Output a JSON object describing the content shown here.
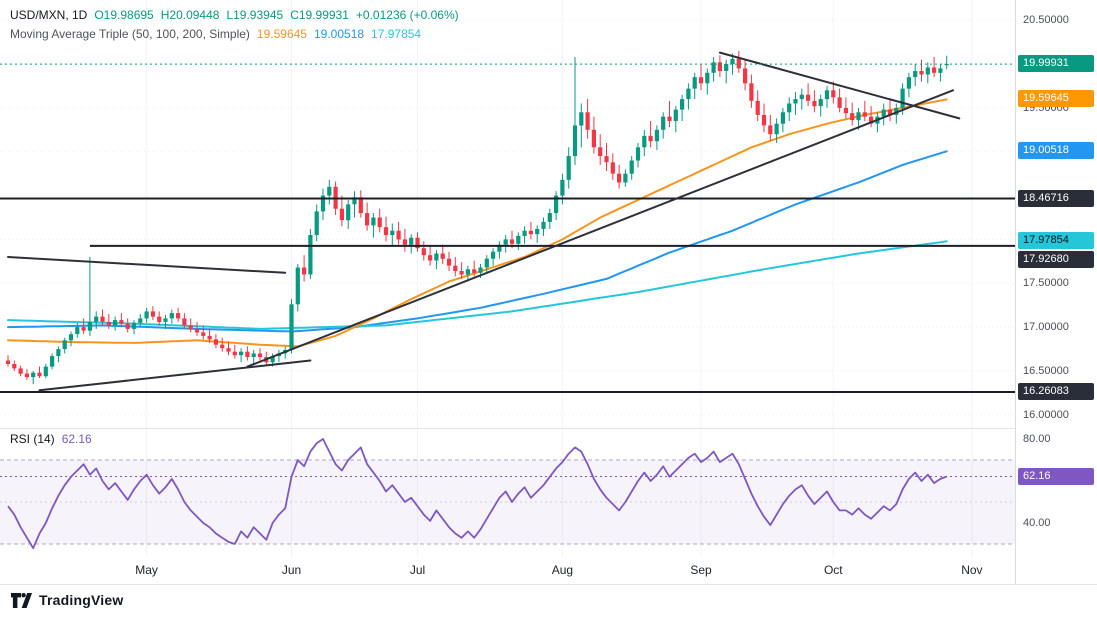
{
  "header": {
    "symbol_interval": "USD/MXN, 1D",
    "open": "O19.98695",
    "high": "H20.09448",
    "low": "L19.93945",
    "close": "C19.99931",
    "change": "+0.01236 (+0.06%)"
  },
  "ma_legend": {
    "title": "Moving Average Triple (50, 100, 200, Simple)",
    "ma50_value": "19.59645",
    "ma100_value": "19.00518",
    "ma200_value": "17.97854"
  },
  "rsi_legend": {
    "title": "RSI (14)",
    "value": "62.16"
  },
  "price_axis": {
    "plain": [
      {
        "text": "20.50000",
        "price": 20.5
      },
      {
        "text": "19.50000",
        "price": 19.5
      },
      {
        "text": "17.50000",
        "price": 17.5
      },
      {
        "text": "17.00000",
        "price": 17.0
      },
      {
        "text": "16.50000",
        "price": 16.5
      },
      {
        "text": "16.00000",
        "price": 16.0
      }
    ],
    "badges": [
      {
        "text": "19.99931",
        "price": 19.99931,
        "bg": "#089981",
        "fg": "#ffffff"
      },
      {
        "text": "19.59645",
        "price": 19.59645,
        "bg": "#ff9800",
        "fg": "#ffffff"
      },
      {
        "text": "19.00518",
        "price": 19.00518,
        "bg": "#2196f3",
        "fg": "#ffffff"
      },
      {
        "text": "18.46716",
        "price": 18.46716,
        "bg": "#2a2e39",
        "fg": "#ffffff"
      },
      {
        "text": "17.97854",
        "price": 17.97854,
        "bg": "#26c6da",
        "fg": "#10131a"
      },
      {
        "text": "17.92680",
        "price": 17.9268,
        "bg": "#2a2e39",
        "fg": "#ffffff"
      },
      {
        "text": "16.26083",
        "price": 16.26083,
        "bg": "#2a2e39",
        "fg": "#ffffff"
      }
    ]
  },
  "rsi_axis": {
    "plain": [
      {
        "text": "80.00",
        "value": 80
      },
      {
        "text": "40.00",
        "value": 40
      }
    ],
    "badge": {
      "text": "62.16",
      "value": 62.16,
      "bg": "#7e57c2",
      "fg": "#ffffff"
    }
  },
  "time_axis": {
    "months": [
      {
        "label": "May",
        "i": 22
      },
      {
        "label": "Jun",
        "i": 45
      },
      {
        "label": "Jul",
        "i": 65
      },
      {
        "label": "Aug",
        "i": 88
      },
      {
        "label": "Sep",
        "i": 110
      },
      {
        "label": "Oct",
        "i": 131
      },
      {
        "label": "Nov",
        "i": 153
      }
    ]
  },
  "footer": {
    "brand": "TradingView"
  },
  "chart_data": {
    "type": "candlestick",
    "title": "USD/MXN, 1D",
    "ylim": [
      15.85,
      20.73
    ],
    "colors": {
      "up": "#089981",
      "down": "#f23645",
      "ma50": "#f7941e",
      "ma100": "#2196f3",
      "ma200": "#26c6da",
      "rsi": "#7e57c2",
      "drawing": "#2e3039",
      "hline": "#1c1f2a"
    },
    "last_price": 19.99931,
    "candles": [
      [
        16.62,
        16.68,
        16.55,
        16.58
      ],
      [
        16.58,
        16.62,
        16.5,
        16.53
      ],
      [
        16.53,
        16.56,
        16.44,
        16.47
      ],
      [
        16.47,
        16.52,
        16.4,
        16.43
      ],
      [
        16.43,
        16.5,
        16.35,
        16.48
      ],
      [
        16.48,
        16.55,
        16.42,
        16.44
      ],
      [
        16.44,
        16.58,
        16.42,
        16.55
      ],
      [
        16.55,
        16.7,
        16.52,
        16.67
      ],
      [
        16.67,
        16.78,
        16.6,
        16.75
      ],
      [
        16.75,
        16.88,
        16.7,
        16.85
      ],
      [
        16.85,
        16.95,
        16.78,
        16.92
      ],
      [
        16.92,
        17.05,
        16.88,
        17.0
      ],
      [
        17.0,
        17.1,
        16.92,
        16.96
      ],
      [
        16.96,
        17.8,
        16.9,
        17.06
      ],
      [
        17.06,
        17.18,
        16.98,
        17.12
      ],
      [
        17.12,
        17.2,
        17.02,
        17.06
      ],
      [
        17.06,
        17.15,
        16.98,
        17.02
      ],
      [
        17.02,
        17.12,
        16.96,
        17.08
      ],
      [
        17.08,
        17.16,
        17.0,
        17.04
      ],
      [
        17.04,
        17.1,
        16.94,
        16.98
      ],
      [
        16.98,
        17.08,
        16.92,
        17.05
      ],
      [
        17.05,
        17.15,
        17.0,
        17.1
      ],
      [
        17.1,
        17.22,
        17.05,
        17.18
      ],
      [
        17.18,
        17.24,
        17.08,
        17.12
      ],
      [
        17.12,
        17.18,
        17.02,
        17.06
      ],
      [
        17.06,
        17.14,
        16.98,
        17.1
      ],
      [
        17.1,
        17.2,
        17.04,
        17.16
      ],
      [
        17.16,
        17.22,
        17.06,
        17.1
      ],
      [
        17.1,
        17.16,
        16.98,
        17.02
      ],
      [
        17.02,
        17.1,
        16.94,
        16.98
      ],
      [
        16.98,
        17.06,
        16.9,
        16.94
      ],
      [
        16.94,
        17.02,
        16.86,
        16.9
      ],
      [
        16.9,
        16.98,
        16.82,
        16.86
      ],
      [
        16.86,
        16.92,
        16.76,
        16.8
      ],
      [
        16.8,
        16.88,
        16.72,
        16.76
      ],
      [
        16.76,
        16.84,
        16.68,
        16.72
      ],
      [
        16.72,
        16.8,
        16.64,
        16.68
      ],
      [
        16.68,
        16.76,
        16.6,
        16.72
      ],
      [
        16.72,
        16.78,
        16.62,
        16.66
      ],
      [
        16.66,
        16.74,
        16.58,
        16.7
      ],
      [
        16.7,
        16.76,
        16.62,
        16.66
      ],
      [
        16.66,
        16.72,
        16.56,
        16.6
      ],
      [
        16.6,
        16.7,
        16.55,
        16.67
      ],
      [
        16.67,
        16.74,
        16.6,
        16.7
      ],
      [
        16.7,
        16.78,
        16.64,
        16.74
      ],
      [
        16.74,
        17.32,
        16.7,
        17.26
      ],
      [
        17.26,
        17.72,
        17.18,
        17.68
      ],
      [
        17.68,
        17.82,
        17.52,
        17.6
      ],
      [
        17.6,
        18.12,
        17.55,
        18.05
      ],
      [
        18.05,
        18.4,
        17.98,
        18.32
      ],
      [
        18.32,
        18.58,
        18.22,
        18.5
      ],
      [
        18.5,
        18.68,
        18.4,
        18.6
      ],
      [
        18.6,
        18.66,
        18.28,
        18.35
      ],
      [
        18.35,
        18.5,
        18.15,
        18.22
      ],
      [
        18.22,
        18.45,
        18.12,
        18.4
      ],
      [
        18.4,
        18.55,
        18.25,
        18.48
      ],
      [
        18.48,
        18.56,
        18.25,
        18.3
      ],
      [
        18.3,
        18.42,
        18.1,
        18.16
      ],
      [
        18.16,
        18.3,
        18.02,
        18.25
      ],
      [
        18.25,
        18.35,
        18.08,
        18.14
      ],
      [
        18.14,
        18.26,
        17.98,
        18.05
      ],
      [
        18.05,
        18.18,
        17.92,
        18.1
      ],
      [
        18.1,
        18.2,
        17.94,
        18.0
      ],
      [
        18.0,
        18.12,
        17.86,
        17.94
      ],
      [
        17.94,
        18.06,
        17.84,
        18.02
      ],
      [
        18.02,
        18.08,
        17.86,
        17.9
      ],
      [
        17.9,
        17.98,
        17.76,
        17.82
      ],
      [
        17.82,
        17.92,
        17.7,
        17.76
      ],
      [
        17.76,
        17.88,
        17.66,
        17.84
      ],
      [
        17.84,
        17.94,
        17.72,
        17.78
      ],
      [
        17.78,
        17.86,
        17.64,
        17.7
      ],
      [
        17.7,
        17.8,
        17.58,
        17.64
      ],
      [
        17.64,
        17.74,
        17.55,
        17.6
      ],
      [
        17.6,
        17.7,
        17.52,
        17.66
      ],
      [
        17.66,
        17.76,
        17.58,
        17.62
      ],
      [
        17.62,
        17.72,
        17.56,
        17.68
      ],
      [
        17.68,
        17.82,
        17.62,
        17.78
      ],
      [
        17.78,
        17.9,
        17.7,
        17.86
      ],
      [
        17.86,
        17.98,
        17.78,
        17.94
      ],
      [
        17.94,
        18.05,
        17.85,
        18.0
      ],
      [
        18.0,
        18.1,
        17.9,
        17.95
      ],
      [
        17.95,
        18.08,
        17.88,
        18.04
      ],
      [
        18.04,
        18.15,
        17.95,
        18.1
      ],
      [
        18.1,
        18.2,
        18.0,
        18.06
      ],
      [
        18.06,
        18.16,
        17.96,
        18.12
      ],
      [
        18.12,
        18.25,
        18.04,
        18.2
      ],
      [
        18.2,
        18.35,
        18.12,
        18.3
      ],
      [
        18.3,
        18.55,
        18.22,
        18.5
      ],
      [
        18.5,
        18.75,
        18.4,
        18.68
      ],
      [
        18.68,
        19.05,
        18.58,
        18.95
      ],
      [
        18.95,
        20.08,
        18.85,
        19.3
      ],
      [
        19.3,
        19.55,
        19.05,
        19.45
      ],
      [
        19.45,
        19.6,
        19.15,
        19.25
      ],
      [
        19.25,
        19.4,
        18.98,
        19.05
      ],
      [
        19.05,
        19.2,
        18.85,
        18.95
      ],
      [
        18.95,
        19.1,
        18.78,
        18.88
      ],
      [
        18.88,
        18.98,
        18.68,
        18.75
      ],
      [
        18.75,
        18.85,
        18.58,
        18.65
      ],
      [
        18.65,
        18.8,
        18.6,
        18.75
      ],
      [
        18.75,
        18.95,
        18.68,
        18.9
      ],
      [
        18.9,
        19.1,
        18.82,
        19.05
      ],
      [
        19.05,
        19.25,
        18.95,
        19.18
      ],
      [
        19.18,
        19.35,
        19.05,
        19.12
      ],
      [
        19.12,
        19.3,
        19.02,
        19.25
      ],
      [
        19.25,
        19.45,
        19.15,
        19.4
      ],
      [
        19.4,
        19.58,
        19.28,
        19.35
      ],
      [
        19.35,
        19.52,
        19.22,
        19.48
      ],
      [
        19.48,
        19.65,
        19.35,
        19.6
      ],
      [
        19.6,
        19.78,
        19.48,
        19.72
      ],
      [
        19.72,
        19.9,
        19.6,
        19.85
      ],
      [
        19.85,
        20.0,
        19.7,
        19.78
      ],
      [
        19.78,
        19.95,
        19.65,
        19.9
      ],
      [
        19.9,
        20.08,
        19.8,
        20.02
      ],
      [
        20.02,
        20.1,
        19.85,
        19.92
      ],
      [
        19.92,
        20.05,
        19.78,
        20.0
      ],
      [
        20.0,
        20.12,
        19.88,
        20.06
      ],
      [
        20.06,
        20.15,
        19.9,
        19.95
      ],
      [
        19.95,
        20.05,
        19.7,
        19.78
      ],
      [
        19.78,
        19.88,
        19.5,
        19.58
      ],
      [
        19.58,
        19.7,
        19.35,
        19.42
      ],
      [
        19.42,
        19.55,
        19.22,
        19.3
      ],
      [
        19.3,
        19.42,
        19.12,
        19.2
      ],
      [
        19.2,
        19.38,
        19.1,
        19.32
      ],
      [
        19.32,
        19.5,
        19.22,
        19.45
      ],
      [
        19.45,
        19.62,
        19.35,
        19.55
      ],
      [
        19.55,
        19.68,
        19.42,
        19.6
      ],
      [
        19.6,
        19.72,
        19.48,
        19.65
      ],
      [
        19.65,
        19.78,
        19.52,
        19.58
      ],
      [
        19.58,
        19.7,
        19.45,
        19.52
      ],
      [
        19.52,
        19.65,
        19.4,
        19.6
      ],
      [
        19.6,
        19.75,
        19.5,
        19.7
      ],
      [
        19.7,
        19.8,
        19.55,
        19.62
      ],
      [
        19.62,
        19.72,
        19.45,
        19.5
      ],
      [
        19.5,
        19.62,
        19.38,
        19.44
      ],
      [
        19.44,
        19.56,
        19.3,
        19.36
      ],
      [
        19.36,
        19.5,
        19.25,
        19.45
      ],
      [
        19.45,
        19.58,
        19.35,
        19.4
      ],
      [
        19.4,
        19.52,
        19.28,
        19.32
      ],
      [
        19.32,
        19.45,
        19.22,
        19.4
      ],
      [
        19.4,
        19.55,
        19.3,
        19.48
      ],
      [
        19.48,
        19.6,
        19.35,
        19.42
      ],
      [
        19.42,
        19.55,
        19.32,
        19.5
      ],
      [
        19.5,
        19.78,
        19.42,
        19.72
      ],
      [
        19.72,
        19.9,
        19.62,
        19.85
      ],
      [
        19.85,
        20.0,
        19.75,
        19.92
      ],
      [
        19.92,
        20.05,
        19.8,
        19.88
      ],
      [
        19.88,
        20.02,
        19.78,
        19.96
      ],
      [
        19.96,
        20.08,
        19.85,
        19.9
      ],
      [
        19.9,
        20.0,
        19.8,
        19.95
      ],
      [
        19.98695,
        20.09448,
        19.93945,
        19.99931
      ]
    ],
    "ma50_points": [
      [
        0,
        16.85
      ],
      [
        10,
        16.83
      ],
      [
        20,
        16.82
      ],
      [
        30,
        16.85
      ],
      [
        40,
        16.8
      ],
      [
        46,
        16.78
      ],
      [
        52,
        16.9
      ],
      [
        58,
        17.1
      ],
      [
        64,
        17.32
      ],
      [
        70,
        17.52
      ],
      [
        76,
        17.66
      ],
      [
        82,
        17.8
      ],
      [
        88,
        18.0
      ],
      [
        94,
        18.25
      ],
      [
        100,
        18.45
      ],
      [
        106,
        18.65
      ],
      [
        112,
        18.85
      ],
      [
        118,
        19.05
      ],
      [
        124,
        19.2
      ],
      [
        130,
        19.32
      ],
      [
        136,
        19.42
      ],
      [
        142,
        19.5
      ],
      [
        149,
        19.59645
      ]
    ],
    "ma100_points": [
      [
        0,
        17.0
      ],
      [
        15,
        17.02
      ],
      [
        30,
        16.98
      ],
      [
        45,
        16.95
      ],
      [
        55,
        17.0
      ],
      [
        65,
        17.1
      ],
      [
        75,
        17.22
      ],
      [
        85,
        17.38
      ],
      [
        95,
        17.55
      ],
      [
        105,
        17.85
      ],
      [
        115,
        18.1
      ],
      [
        125,
        18.4
      ],
      [
        135,
        18.65
      ],
      [
        142,
        18.85
      ],
      [
        149,
        19.00518
      ]
    ],
    "ma200_points": [
      [
        0,
        17.08
      ],
      [
        20,
        17.04
      ],
      [
        40,
        16.98
      ],
      [
        60,
        17.02
      ],
      [
        80,
        17.18
      ],
      [
        100,
        17.4
      ],
      [
        120,
        17.66
      ],
      [
        135,
        17.84
      ],
      [
        149,
        17.97854
      ]
    ],
    "horizontal_lines": [
      {
        "price": 18.46716,
        "from_index": 0
      },
      {
        "price": 17.9268,
        "from_index": 13
      },
      {
        "price": 16.26083,
        "from_index": 0
      }
    ],
    "trend_lines": [
      [
        5,
        16.28,
        48,
        16.62
      ],
      [
        0,
        17.8,
        44,
        17.62
      ],
      [
        38,
        16.55,
        150,
        19.7
      ],
      [
        113,
        20.13,
        151,
        19.38
      ]
    ],
    "rsi": {
      "period": 14,
      "last": 62.16,
      "bands": [
        70,
        30
      ],
      "mid": 50,
      "scale_labels": [
        80,
        40
      ],
      "values": [
        48,
        44,
        38,
        33,
        28,
        35,
        40,
        47,
        53,
        58,
        62,
        65,
        68,
        63,
        66,
        60,
        56,
        59,
        55,
        51,
        56,
        60,
        63,
        58,
        54,
        57,
        61,
        56,
        50,
        46,
        43,
        40,
        38,
        35,
        33,
        31,
        30,
        36,
        33,
        38,
        35,
        32,
        40,
        44,
        47,
        62,
        70,
        67,
        74,
        78,
        80,
        74,
        68,
        65,
        70,
        73,
        76,
        68,
        64,
        60,
        55,
        58,
        54,
        50,
        52,
        48,
        44,
        41,
        46,
        42,
        38,
        35,
        33,
        36,
        33,
        37,
        42,
        47,
        52,
        55,
        50,
        54,
        57,
        52,
        55,
        58,
        62,
        66,
        69,
        73,
        76,
        74,
        68,
        61,
        56,
        52,
        49,
        46,
        50,
        55,
        60,
        64,
        60,
        63,
        67,
        62,
        65,
        68,
        71,
        73,
        69,
        71,
        74,
        69,
        71,
        73,
        68,
        61,
        54,
        48,
        43,
        39,
        44,
        49,
        53,
        56,
        58,
        53,
        49,
        52,
        55,
        50,
        46,
        46,
        44,
        47,
        44,
        42,
        45,
        48,
        46,
        49,
        56,
        61,
        64,
        60,
        63,
        59,
        61,
        62.16
      ]
    }
  }
}
